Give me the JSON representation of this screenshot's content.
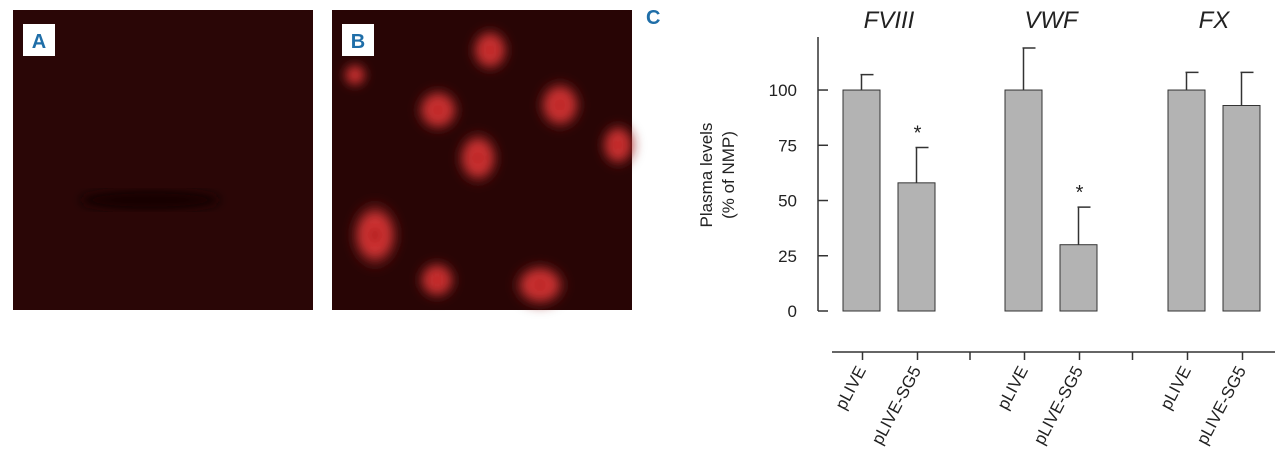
{
  "panels": [
    {
      "label": "A"
    },
    {
      "label": "B"
    }
  ],
  "chart_data": {
    "type": "bar",
    "panel_label": "C",
    "groups": [
      "FVIII",
      "VWF",
      "FX"
    ],
    "y_label": [
      "Plasma levels",
      "(% of NMP)"
    ],
    "series": [
      {
        "name": "pLIVE",
        "color": "#b3b3b3",
        "values": [
          100,
          100,
          100
        ],
        "errors": [
          7,
          19,
          8
        ]
      },
      {
        "name": "pLIVE-SG5",
        "color": "#b3b3b3",
        "values": [
          58,
          30,
          93
        ],
        "errors": [
          16,
          17,
          15
        ],
        "markers": [
          "*",
          "*",
          null
        ]
      }
    ],
    "ylim": [
      0,
      124
    ],
    "yticks": [
      0,
      25,
      50,
      75,
      100
    ]
  }
}
